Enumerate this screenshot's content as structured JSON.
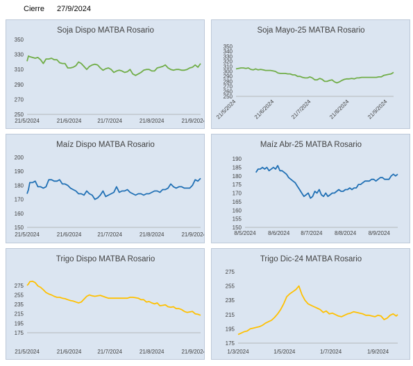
{
  "header": {
    "label": "Cierre",
    "date": "27/9/2024"
  },
  "chart_data": [
    {
      "type": "line",
      "title": "Soja Dispo MATBA Rosario",
      "color": "#70ad47",
      "ylim": [
        250,
        350
      ],
      "yticks": [
        250,
        270,
        290,
        310,
        330,
        350
      ],
      "xticks": [
        "21/5/2024",
        "21/6/2024",
        "21/7/2024",
        "21/8/2024",
        "21/9/2024"
      ],
      "xtick_positions": [
        0,
        31,
        61,
        92,
        123
      ],
      "x_rotated": false,
      "x": [
        0,
        1,
        2,
        4,
        6,
        8,
        10,
        12,
        14,
        16,
        18,
        20,
        22,
        24,
        26,
        28,
        30,
        32,
        34,
        36,
        38,
        40,
        42,
        44,
        46,
        48,
        50,
        52,
        54,
        56,
        58,
        60,
        62,
        64,
        66,
        68,
        70,
        72,
        74,
        76,
        78,
        80,
        82,
        84,
        86,
        88,
        90,
        92,
        94,
        96,
        98,
        100,
        102,
        104,
        106,
        108,
        110,
        112,
        114,
        116,
        118,
        120,
        122,
        124,
        126,
        128
      ],
      "values": [
        321,
        328,
        327,
        326,
        325,
        326,
        323,
        318,
        324,
        324,
        325,
        323,
        323,
        319,
        318,
        318,
        312,
        312,
        313,
        315,
        320,
        318,
        314,
        310,
        314,
        316,
        317,
        316,
        312,
        309,
        311,
        312,
        310,
        306,
        308,
        309,
        308,
        306,
        307,
        310,
        304,
        302,
        304,
        306,
        309,
        310,
        310,
        308,
        308,
        312,
        313,
        314,
        316,
        312,
        310,
        309,
        310,
        310,
        309,
        309,
        310,
        312,
        313,
        316,
        313,
        318
      ]
    },
    {
      "type": "line",
      "title": "Soja Mayo-25 MATBA Rosario",
      "color": "#70ad47",
      "ylim": [
        250,
        350
      ],
      "yticks": [
        250,
        260,
        270,
        280,
        290,
        300,
        310,
        320,
        330,
        340,
        350
      ],
      "xticks": [
        "21/5/2024",
        "21/6/2024",
        "21/7/2024",
        "21/8/2024",
        "21/9/2024"
      ],
      "xtick_positions": [
        0,
        31,
        61,
        92,
        123
      ],
      "x_rotated": true,
      "x": [
        0,
        2,
        4,
        6,
        8,
        10,
        12,
        14,
        16,
        18,
        20,
        22,
        24,
        26,
        28,
        30,
        32,
        34,
        36,
        38,
        40,
        42,
        44,
        46,
        48,
        50,
        52,
        54,
        56,
        58,
        60,
        62,
        64,
        66,
        68,
        70,
        72,
        74,
        76,
        78,
        80,
        82,
        84,
        86,
        88,
        90,
        92,
        94,
        96,
        98,
        100,
        102,
        104,
        106,
        108,
        110,
        112,
        114,
        116,
        118,
        120,
        122,
        124,
        126,
        128
      ],
      "values": [
        305,
        306,
        307,
        307,
        306,
        307,
        304,
        303,
        305,
        303,
        304,
        303,
        302,
        302,
        302,
        301,
        300,
        297,
        296,
        296,
        296,
        295,
        295,
        293,
        293,
        290,
        290,
        288,
        287,
        287,
        289,
        287,
        283,
        283,
        286,
        284,
        280,
        280,
        282,
        283,
        279,
        277,
        279,
        282,
        284,
        285,
        285,
        286,
        285,
        287,
        287,
        288,
        288,
        288,
        288,
        288,
        288,
        288,
        289,
        289,
        292,
        293,
        294,
        295,
        298
      ]
    },
    {
      "type": "line",
      "title": "Maíz Dispo MATBA Rosario",
      "color": "#1f6fb4",
      "ylim": [
        150,
        200
      ],
      "yticks": [
        150,
        160,
        170,
        180,
        190,
        200
      ],
      "xticks": [
        "21/5/2024",
        "21/6/2024",
        "21/7/2024",
        "21/8/2024",
        "21/9/2024"
      ],
      "xtick_positions": [
        0,
        31,
        61,
        92,
        123
      ],
      "x_rotated": false,
      "x": [
        0,
        1,
        2,
        4,
        6,
        8,
        10,
        12,
        14,
        16,
        18,
        20,
        22,
        24,
        26,
        28,
        30,
        32,
        34,
        36,
        38,
        40,
        42,
        44,
        46,
        48,
        50,
        52,
        54,
        56,
        58,
        60,
        62,
        64,
        66,
        68,
        70,
        72,
        74,
        76,
        78,
        80,
        82,
        84,
        86,
        88,
        90,
        92,
        94,
        96,
        98,
        100,
        102,
        104,
        106,
        108,
        110,
        112,
        114,
        116,
        118,
        120,
        122,
        124,
        126,
        128
      ],
      "values": [
        174,
        177,
        182,
        182,
        183,
        179,
        179,
        178,
        179,
        184,
        184,
        183,
        183,
        184,
        181,
        181,
        180,
        178,
        177,
        176,
        174,
        174,
        173,
        176,
        174,
        173,
        170,
        171,
        173,
        176,
        172,
        173,
        174,
        175,
        179,
        175,
        176,
        176,
        177,
        175,
        174,
        173,
        174,
        174,
        173,
        174,
        174,
        175,
        176,
        176,
        175,
        177,
        177,
        178,
        181,
        179,
        178,
        179,
        179,
        178,
        178,
        178,
        180,
        184,
        183,
        185
      ]
    },
    {
      "type": "line",
      "title": "Maíz Abr-25 MATBA Rosario",
      "color": "#1f6fb4",
      "ylim": [
        150,
        190
      ],
      "yticks": [
        150,
        155,
        160,
        165,
        170,
        175,
        180,
        185,
        190
      ],
      "xticks": [
        "8/5/2024",
        "8/6/2024",
        "8/7/2024",
        "8/8/2024",
        "8/9/2024"
      ],
      "xtick_positions": [
        0,
        31,
        61,
        92,
        123
      ],
      "x_rotated": false,
      "x": [
        10,
        12,
        14,
        16,
        18,
        20,
        22,
        24,
        26,
        28,
        30,
        32,
        34,
        36,
        38,
        40,
        42,
        44,
        46,
        48,
        50,
        52,
        54,
        56,
        58,
        60,
        62,
        64,
        66,
        68,
        70,
        72,
        74,
        76,
        78,
        80,
        82,
        84,
        86,
        88,
        90,
        92,
        94,
        96,
        98,
        100,
        102,
        104,
        106,
        108,
        110,
        112,
        114,
        116,
        118,
        120,
        122,
        124,
        126,
        128,
        130,
        132,
        134,
        136,
        138,
        140
      ],
      "values": [
        182,
        184,
        184,
        185,
        184,
        185,
        183,
        184,
        185,
        184,
        186,
        183,
        183,
        182,
        181,
        179,
        178,
        177,
        176,
        174,
        172,
        170,
        168,
        169,
        170,
        167,
        168,
        171,
        170,
        172,
        169,
        168,
        170,
        168,
        169,
        170,
        170,
        171,
        172,
        171,
        171,
        172,
        172,
        173,
        172,
        173,
        173,
        175,
        175,
        176,
        177,
        177,
        177,
        178,
        178,
        177,
        178,
        179,
        179,
        178,
        178,
        178,
        180,
        181,
        180,
        181
      ]
    },
    {
      "type": "line",
      "title": "Trigo Dispo MATBA Rosario",
      "color": "#ffc000",
      "ylim": [
        175,
        285
      ],
      "yticks": [
        175,
        195,
        215,
        235,
        255,
        275
      ],
      "xticks": [
        "21/5/2024",
        "21/6/2024",
        "21/7/2024",
        "21/8/2024",
        "21/9/2024"
      ],
      "xtick_positions": [
        0,
        31,
        61,
        92,
        123
      ],
      "x_rotated": false,
      "x": [
        0,
        1,
        2,
        4,
        6,
        8,
        10,
        12,
        14,
        16,
        18,
        20,
        22,
        24,
        26,
        28,
        30,
        32,
        34,
        36,
        38,
        40,
        42,
        44,
        46,
        48,
        50,
        52,
        54,
        56,
        58,
        60,
        62,
        64,
        66,
        68,
        70,
        72,
        74,
        76,
        78,
        80,
        82,
        84,
        86,
        88,
        90,
        92,
        94,
        96,
        98,
        100,
        102,
        104,
        106,
        108,
        110,
        112,
        114,
        116,
        118,
        120,
        122,
        124,
        126,
        128
      ],
      "values": [
        275,
        278,
        283,
        284,
        281,
        274,
        271,
        266,
        260,
        257,
        255,
        252,
        250,
        250,
        248,
        247,
        245,
        243,
        242,
        240,
        238,
        240,
        246,
        252,
        255,
        253,
        252,
        253,
        254,
        252,
        250,
        248,
        248,
        248,
        248,
        248,
        248,
        248,
        248,
        250,
        250,
        249,
        248,
        245,
        245,
        240,
        241,
        238,
        236,
        238,
        232,
        233,
        234,
        230,
        229,
        230,
        226,
        226,
        224,
        220,
        218,
        219,
        220,
        215,
        214,
        212
      ]
    },
    {
      "type": "line",
      "title": "Trigo Dic-24 MATBA Rosario",
      "color": "#ffc000",
      "ylim": [
        175,
        275
      ],
      "yticks": [
        175,
        195,
        215,
        235,
        255,
        275
      ],
      "xticks": [
        "1/3/2024",
        "1/5/2024",
        "1/7/2024",
        "1/9/2024"
      ],
      "xtick_positions": [
        0,
        61,
        122,
        184
      ],
      "x_rotated": false,
      "x": [
        0,
        4,
        8,
        12,
        16,
        20,
        24,
        28,
        32,
        36,
        40,
        44,
        48,
        52,
        56,
        60,
        64,
        68,
        72,
        76,
        80,
        84,
        88,
        92,
        96,
        100,
        104,
        108,
        112,
        116,
        120,
        124,
        128,
        132,
        136,
        140,
        144,
        148,
        152,
        156,
        160,
        164,
        168,
        172,
        176,
        180,
        184,
        188,
        192,
        196,
        200,
        204,
        208,
        210
      ],
      "values": [
        187,
        189,
        191,
        192,
        195,
        196,
        197,
        198,
        200,
        203,
        205,
        207,
        211,
        216,
        222,
        230,
        240,
        244,
        247,
        250,
        255,
        243,
        235,
        230,
        228,
        226,
        224,
        222,
        218,
        220,
        216,
        217,
        215,
        213,
        212,
        214,
        216,
        217,
        219,
        218,
        217,
        216,
        214,
        214,
        213,
        212,
        214,
        213,
        208,
        210,
        214,
        216,
        213,
        215
      ]
    }
  ]
}
